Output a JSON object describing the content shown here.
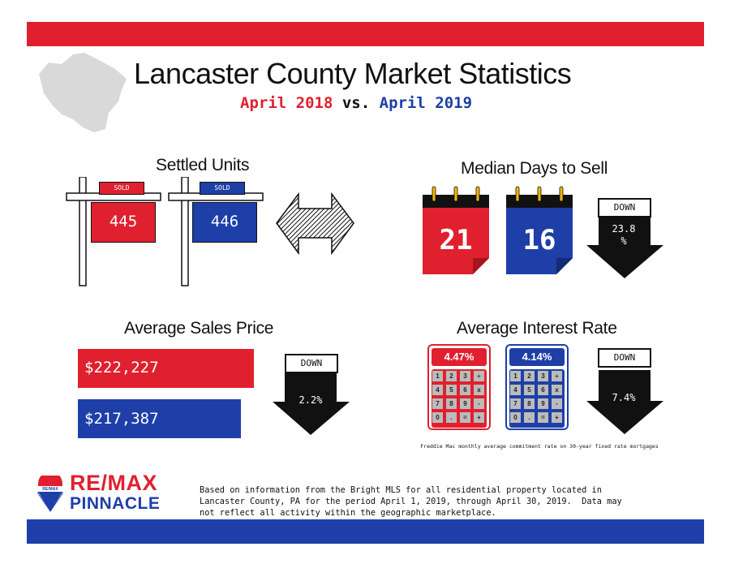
{
  "header": {
    "title": "Lancaster County Market Statistics",
    "subtitle_a": "April 2018",
    "subtitle_vs": "vs.",
    "subtitle_b": "April 2019"
  },
  "colors": {
    "red": "#e0202f",
    "blue": "#1e3fa8",
    "black": "#111111",
    "gray": "#d9d9d9"
  },
  "settled_units": {
    "title": "Settled Units",
    "sign_tag": "SOLD",
    "value_2018": "445",
    "value_2019": "446",
    "change_icon": "double-arrow-icon"
  },
  "median_days": {
    "title": "Median Days to Sell",
    "value_2018": "21",
    "value_2019": "16",
    "direction": "DOWN",
    "change": "23.8\n%"
  },
  "avg_price": {
    "title": "Average Sales Price",
    "value_2018": "$222,227",
    "value_2019": "$217,387",
    "direction": "DOWN",
    "change": "2.2%"
  },
  "interest_rate": {
    "title": "Average Interest Rate",
    "value_2018": "4.47%",
    "value_2019": "4.14%",
    "direction": "DOWN",
    "change": "7.4%",
    "keys": [
      "1",
      "2",
      "3",
      "÷",
      "4",
      "5",
      "6",
      "x",
      "7",
      "8",
      "9",
      "-",
      "0",
      ".",
      "=",
      "+"
    ],
    "note": "Freddie Mac monthly average commitment rate on 30-year fixed rate mortgages"
  },
  "brand": {
    "name_line1": "RE/MAX",
    "name_line2": "PINNACLE",
    "balloon_text": "RE/MAX"
  },
  "footer": {
    "text": "Based on information from the Bright MLS for all residential property located in\nLancaster County, PA for the period April 1, 2019, through April 30, 2019.  Data may\nnot reflect all activity within the geographic marketplace."
  }
}
